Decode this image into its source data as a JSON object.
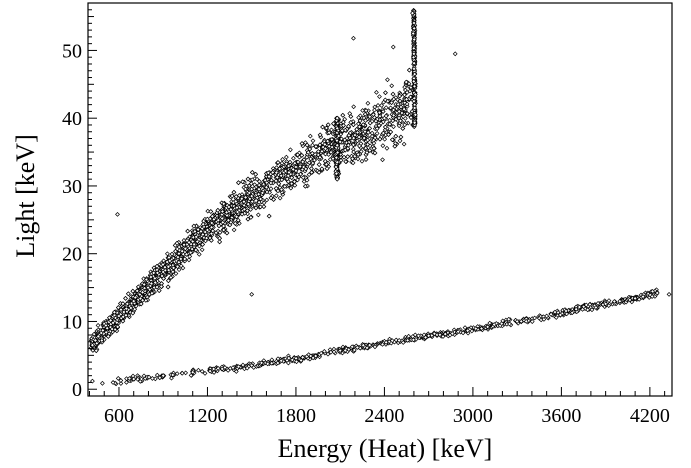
{
  "chart_data": {
    "type": "scatter",
    "title": "",
    "xlabel": "Energy (Heat)  [keV]",
    "ylabel": "Light  [keV]",
    "xlim": [
      390,
      4350
    ],
    "ylim": [
      -1,
      57
    ],
    "xticks": [
      600,
      1200,
      1800,
      2400,
      3000,
      3600,
      4200
    ],
    "yticks": [
      0,
      10,
      20,
      30,
      40,
      50
    ],
    "xtick_labels": [
      "600",
      "1200",
      "1800",
      "2400",
      "3000",
      "3600",
      "4200"
    ],
    "ytick_labels": [
      "0",
      "10",
      "20",
      "30",
      "40",
      "50"
    ],
    "grid": false,
    "marker": "open-diamond",
    "series": [
      {
        "points": [
          [
            420,
            6.5
          ],
          [
            440,
            7.2
          ],
          [
            460,
            7.8
          ],
          [
            480,
            8.3
          ],
          [
            520,
            9.0
          ],
          [
            560,
            9.8
          ],
          [
            600,
            10.8
          ],
          [
            650,
            11.9
          ],
          [
            700,
            13.0
          ],
          [
            760,
            14.3
          ],
          [
            820,
            15.6
          ],
          [
            900,
            17.3
          ],
          [
            1000,
            19.5
          ],
          [
            1100,
            21.8
          ],
          [
            1200,
            23.5
          ],
          [
            1300,
            25.2
          ],
          [
            1400,
            26.8
          ],
          [
            1500,
            28.5
          ],
          [
            1600,
            29.8
          ],
          [
            1700,
            31.5
          ],
          [
            1800,
            32.8
          ],
          [
            1900,
            34.0
          ],
          [
            2000,
            35.5
          ],
          [
            2100,
            36.5
          ],
          [
            2200,
            37.5
          ],
          [
            2300,
            38.5
          ],
          [
            2400,
            40.0
          ],
          [
            2500,
            41.0
          ],
          [
            2600,
            42.5
          ],
          [
            2080,
            31.0
          ],
          [
            2080,
            33.5
          ],
          [
            2080,
            36.0
          ],
          [
            2080,
            38.5
          ],
          [
            2080,
            40.0
          ],
          [
            2610,
            40.5
          ],
          [
            2610,
            43.5
          ],
          [
            2605,
            46.5
          ],
          [
            2600,
            49.5
          ],
          [
            2595,
            52.5
          ],
          [
            2590,
            55.5
          ],
          [
            590,
            25.8
          ],
          [
            2190,
            51.8
          ],
          [
            2460,
            50.5
          ],
          [
            2880,
            49.5
          ],
          [
            1500,
            14.0
          ]
        ]
      },
      {
        "points": [
          [
            420,
            1.2
          ],
          [
            560,
            1.0
          ],
          [
            700,
            1.5
          ],
          [
            900,
            2.0
          ],
          [
            1100,
            2.5
          ],
          [
            1300,
            3.0
          ],
          [
            1500,
            3.5
          ],
          [
            1700,
            4.2
          ],
          [
            1900,
            4.9
          ],
          [
            2100,
            5.7
          ],
          [
            2300,
            6.5
          ],
          [
            2500,
            7.2
          ],
          [
            2700,
            7.9
          ],
          [
            2900,
            8.5
          ],
          [
            3100,
            9.2
          ],
          [
            3300,
            10.0
          ],
          [
            3500,
            10.8
          ],
          [
            3700,
            11.8
          ],
          [
            3900,
            12.6
          ],
          [
            4100,
            13.4
          ],
          [
            4250,
            14.2
          ],
          [
            4330,
            14.0
          ]
        ]
      }
    ]
  }
}
